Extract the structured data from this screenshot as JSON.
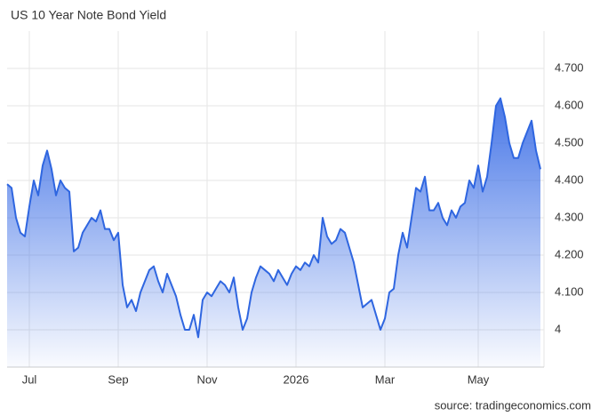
{
  "chart_data": {
    "type": "area",
    "title": "US 10 Year Note Bond Yield",
    "source": "source: tradingeconomics.com",
    "color": "#2f66e0",
    "grid": true,
    "categories": [
      null,
      null,
      null,
      null,
      null,
      "Jul",
      null,
      null,
      null,
      null,
      null,
      null,
      null,
      null,
      null,
      null,
      null,
      null,
      null,
      null,
      null,
      null,
      null,
      null,
      null,
      "Sep",
      null,
      null,
      null,
      null,
      null,
      null,
      null,
      null,
      null,
      null,
      null,
      null,
      null,
      null,
      null,
      null,
      null,
      null,
      null,
      "Nov",
      null,
      null,
      null,
      null,
      null,
      null,
      null,
      null,
      null,
      null,
      null,
      null,
      null,
      null,
      null,
      null,
      null,
      null,
      null,
      "2026",
      null,
      null,
      null,
      null,
      null,
      null,
      null,
      null,
      null,
      null,
      null,
      null,
      null,
      null,
      null,
      null,
      null,
      null,
      null,
      "Mar",
      null,
      null,
      null,
      null,
      null,
      null,
      null,
      null,
      null,
      null,
      null,
      null,
      null,
      null,
      null,
      null,
      null,
      null,
      null,
      null,
      "May",
      null,
      null,
      null,
      null,
      null,
      null,
      null,
      null,
      null,
      null,
      null,
      null,
      null,
      null
    ],
    "values": [
      4.39,
      4.38,
      4.3,
      4.26,
      4.25,
      4.33,
      4.4,
      4.36,
      4.44,
      4.48,
      4.43,
      4.36,
      4.4,
      4.38,
      4.37,
      4.21,
      4.22,
      4.26,
      4.28,
      4.3,
      4.29,
      4.32,
      4.27,
      4.27,
      4.24,
      4.26,
      4.12,
      4.06,
      4.08,
      4.05,
      4.1,
      4.13,
      4.16,
      4.17,
      4.13,
      4.1,
      4.15,
      4.12,
      4.09,
      4.04,
      4.0,
      4.0,
      4.04,
      3.98,
      4.08,
      4.1,
      4.09,
      4.11,
      4.13,
      4.12,
      4.1,
      4.14,
      4.06,
      4.0,
      4.03,
      4.1,
      4.14,
      4.17,
      4.16,
      4.15,
      4.13,
      4.16,
      4.14,
      4.12,
      4.15,
      4.17,
      4.16,
      4.18,
      4.17,
      4.2,
      4.18,
      4.3,
      4.25,
      4.23,
      4.24,
      4.27,
      4.26,
      4.22,
      4.18,
      4.12,
      4.06,
      4.07,
      4.08,
      4.04,
      4.0,
      4.03,
      4.1,
      4.11,
      4.2,
      4.26,
      4.22,
      4.3,
      4.38,
      4.37,
      4.41,
      4.32,
      4.32,
      4.34,
      4.3,
      4.28,
      4.32,
      4.3,
      4.33,
      4.34,
      4.4,
      4.38,
      4.44,
      4.37,
      4.41,
      4.5,
      4.6,
      4.62,
      4.57,
      4.5,
      4.46,
      4.46,
      4.5,
      4.53,
      4.56,
      4.48,
      4.43
    ],
    "ylim": [
      3.9,
      4.8
    ],
    "yticks": [
      4,
      {
        "value": 4.1,
        "label": "4.100"
      },
      {
        "value": 4.2,
        "label": "4.200"
      },
      {
        "value": 4.3,
        "label": "4.300"
      },
      {
        "value": 4.4,
        "label": "4.400"
      },
      {
        "value": 4.5,
        "label": "4.500"
      },
      {
        "value": 4.6,
        "label": "4.600"
      },
      {
        "value": 4.7,
        "label": "4.700"
      }
    ]
  }
}
